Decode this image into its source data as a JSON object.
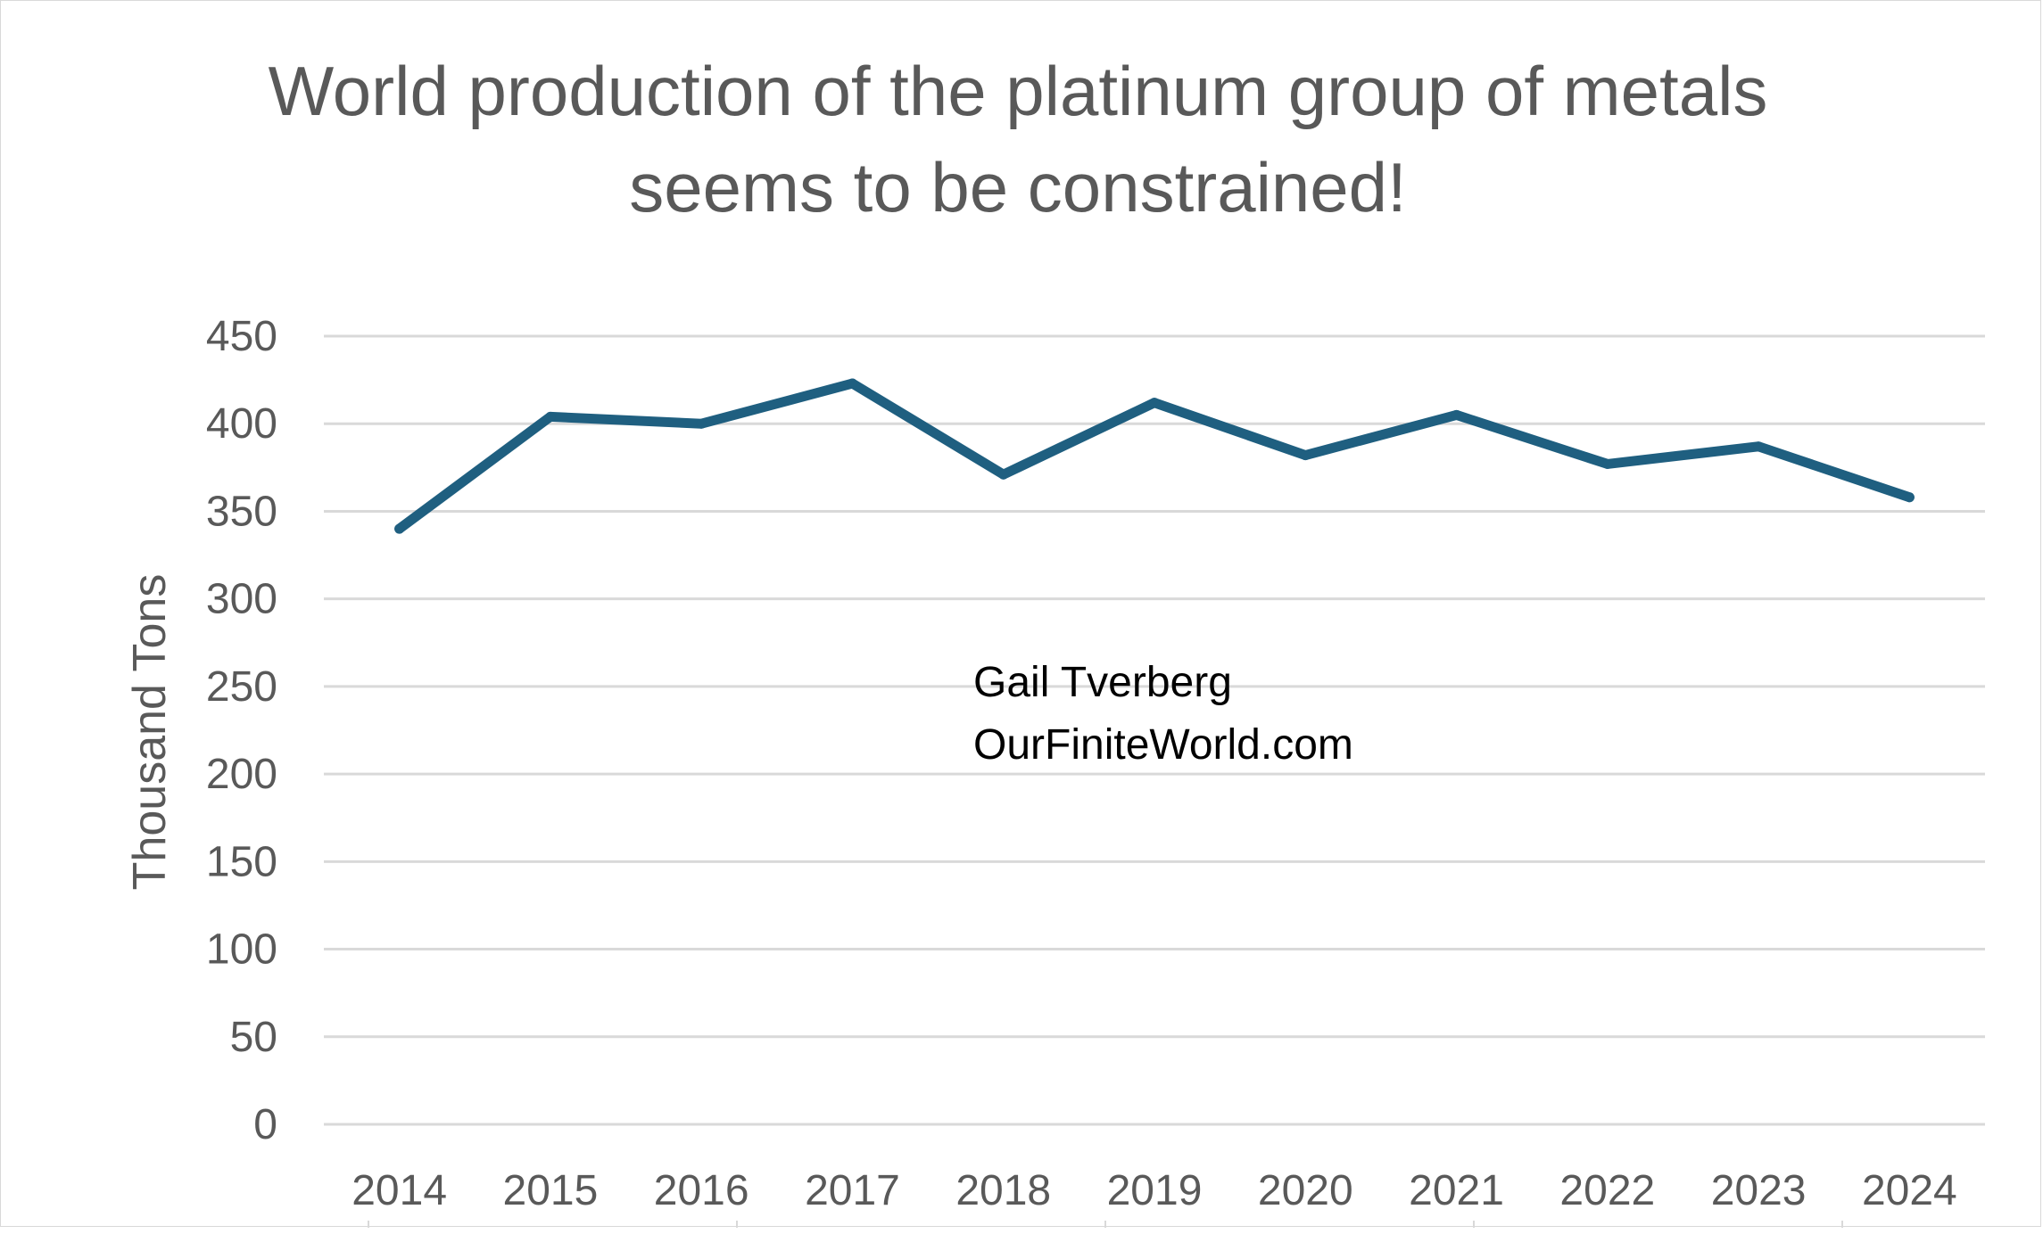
{
  "chart_data": {
    "type": "line",
    "title_lines": [
      "World production of the platinum group of metals",
      "seems to be constrained!"
    ],
    "ylabel": "Thousand Tons",
    "xlabel": "",
    "ylim": [
      0,
      450
    ],
    "y_ticks": [
      "0",
      "50",
      "100",
      "150",
      "200",
      "250",
      "300",
      "350",
      "400",
      "450"
    ],
    "categories": [
      "2014",
      "2015",
      "2016",
      "2017",
      "2018",
      "2019",
      "2020",
      "2021",
      "2022",
      "2023",
      "2024"
    ],
    "series": [
      {
        "values": [
          340,
          404,
          400,
          423,
          371,
          412,
          382,
          405,
          377,
          387,
          358
        ]
      }
    ],
    "grid": "horizontal",
    "legend": "none",
    "annotation_lines": [
      "Gail Tverberg",
      "OurFiniteWorld.com"
    ]
  },
  "colors": {
    "line": "#1f5f80",
    "grid": "#d9d9d9",
    "text": "#595959"
  }
}
